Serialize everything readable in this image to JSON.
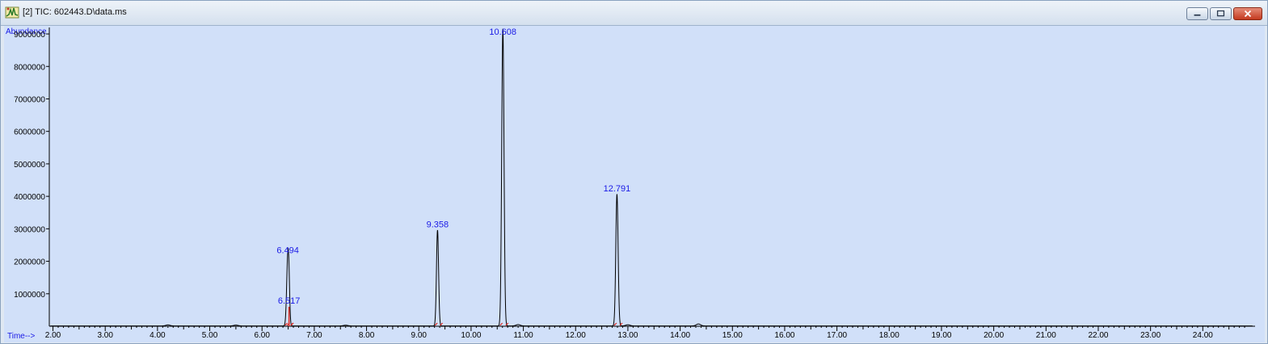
{
  "window": {
    "title": "[2] TIC: 602443.D\\data.ms",
    "icon": "chromatogram-app-icon"
  },
  "window_controls": {
    "minimize": "minimize-icon",
    "maximize": "maximize-icon",
    "close": "close-icon"
  },
  "colors": {
    "plot_background": "#d1e0f9",
    "trace": "#000000",
    "peak_labels": "#1a1ae6",
    "integration_marks": "#e0261c"
  },
  "chart_data": {
    "type": "line",
    "xlabel": "Time-->",
    "ylabel": "Abundance",
    "xlim": [
      1.93,
      25.0
    ],
    "ylim": [
      0,
      9200000
    ],
    "x_ticks": [
      2.0,
      3.0,
      4.0,
      5.0,
      6.0,
      7.0,
      8.0,
      9.0,
      10.0,
      11.0,
      12.0,
      13.0,
      14.0,
      15.0,
      16.0,
      17.0,
      18.0,
      19.0,
      20.0,
      21.0,
      22.0,
      23.0,
      24.0
    ],
    "x_tick_labels": [
      "2.00",
      "3.00",
      "4.00",
      "5.00",
      "6.00",
      "7.00",
      "8.00",
      "9.00",
      "10.00",
      "11.00",
      "12.00",
      "13.00",
      "14.00",
      "15.00",
      "16.00",
      "17.00",
      "18.00",
      "19.00",
      "20.00",
      "21.00",
      "22.00",
      "23.00",
      "24.00"
    ],
    "y_ticks": [
      1000000,
      2000000,
      3000000,
      4000000,
      5000000,
      6000000,
      7000000,
      8000000,
      9000000
    ],
    "y_tick_labels": [
      "1000000",
      "2000000",
      "3000000",
      "4000000",
      "5000000",
      "6000000",
      "7000000",
      "8000000",
      "9000000"
    ],
    "peaks": [
      {
        "rt": 6.494,
        "label": "6.494",
        "abundance": 2150000,
        "width": 0.022
      },
      {
        "rt": 6.517,
        "label": "6.517",
        "abundance": 600000,
        "width": 0.015
      },
      {
        "rt": 9.358,
        "label": "9.358",
        "abundance": 2950000,
        "width": 0.02
      },
      {
        "rt": 10.608,
        "label": "10.608",
        "abundance": 9150000,
        "width": 0.022
      },
      {
        "rt": 12.791,
        "label": "12.791",
        "abundance": 4050000,
        "width": 0.022
      }
    ],
    "grid": false
  }
}
